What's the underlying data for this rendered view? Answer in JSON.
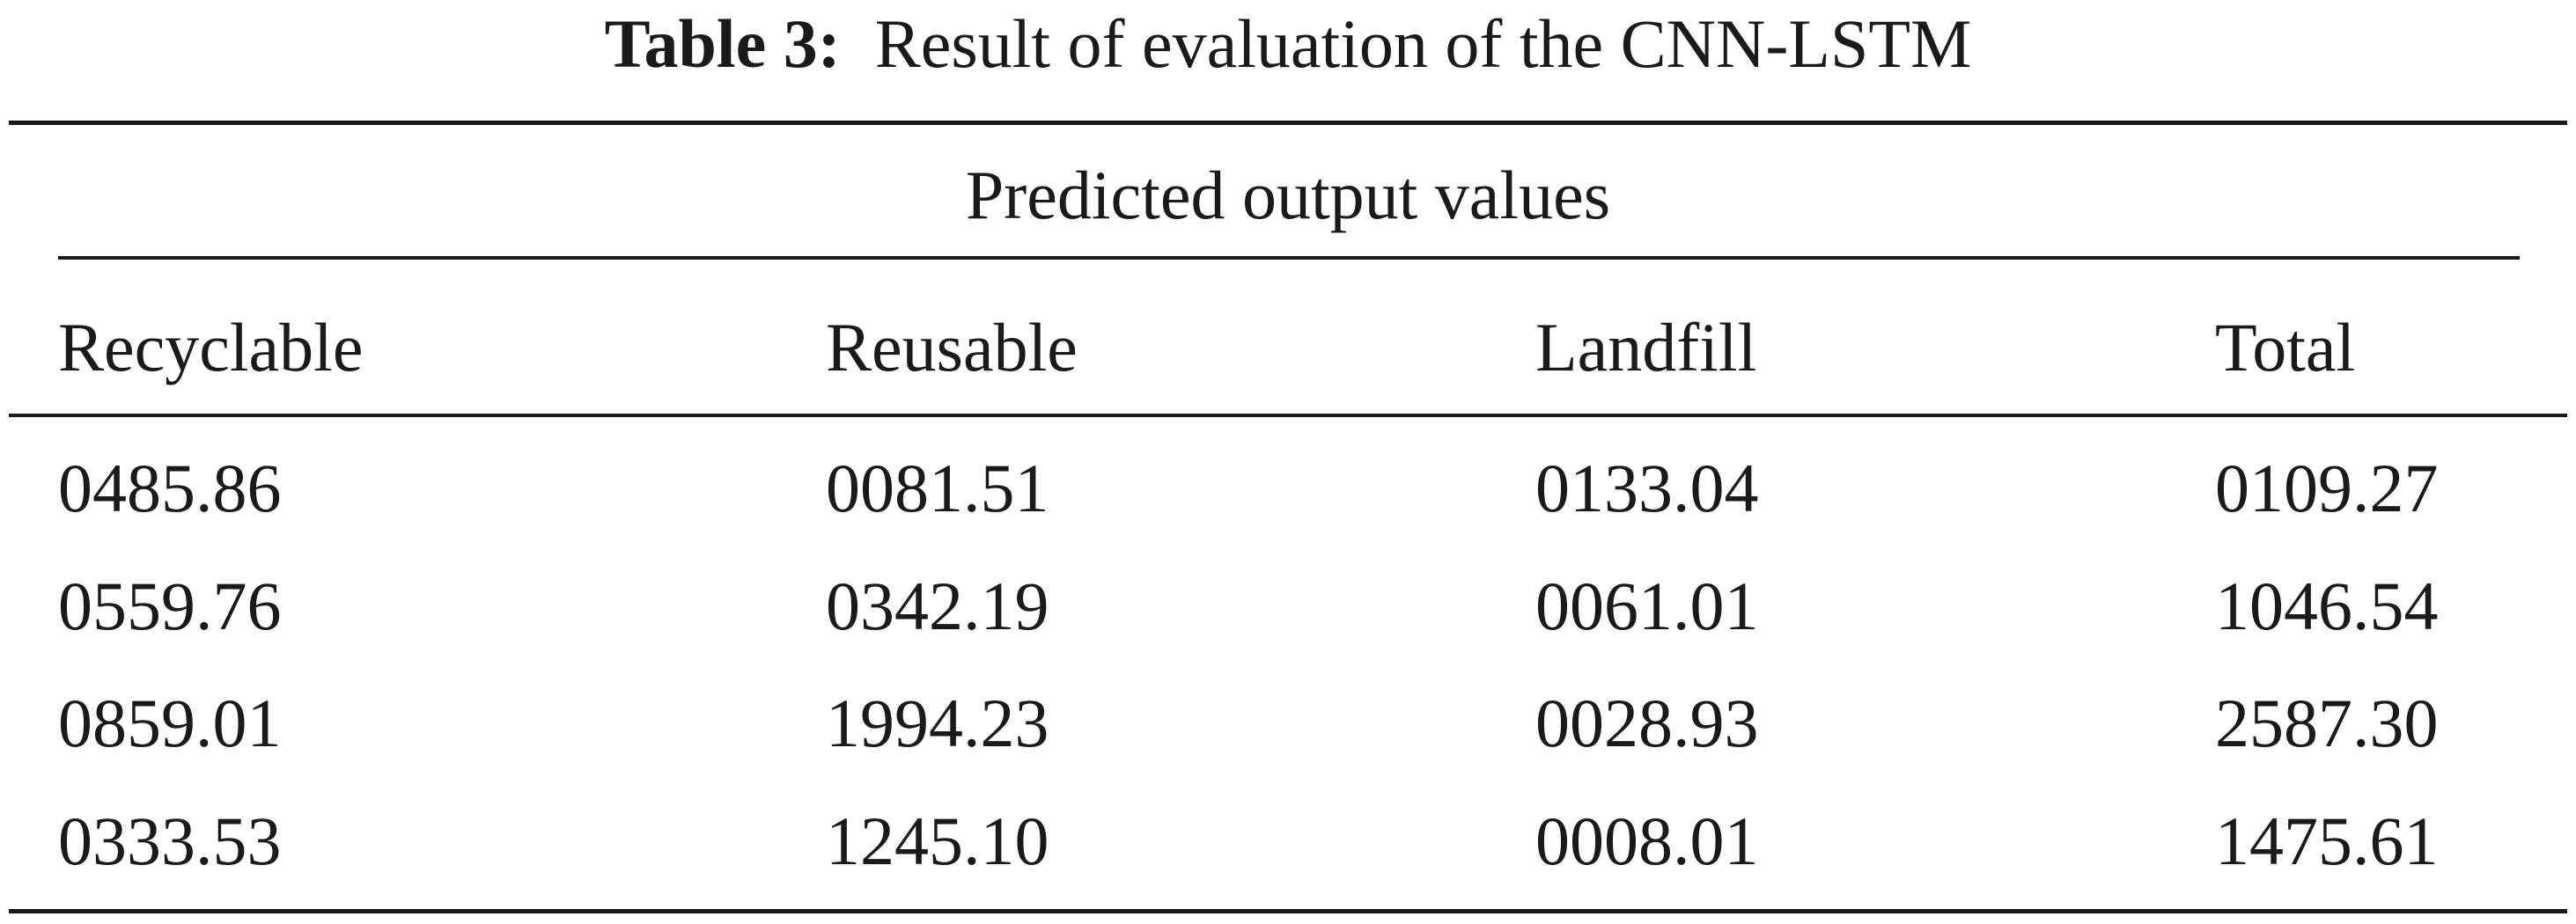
{
  "caption": {
    "label": "Table 3:",
    "text": "Result of evaluation of the CNN-LSTM"
  },
  "table": {
    "group_header": "Predicted output values",
    "columns": [
      "Recyclable",
      "Reusable",
      "Landfill",
      "Total"
    ],
    "rows": [
      [
        "0485.86",
        "0081.51",
        "0133.04",
        "0109.27"
      ],
      [
        "0559.76",
        "0342.19",
        "0061.01",
        "1046.54"
      ],
      [
        "0859.01",
        "1994.23",
        "0028.93",
        "2587.30"
      ],
      [
        "0333.53",
        "1245.10",
        "0008.01",
        "1475.61"
      ]
    ]
  }
}
